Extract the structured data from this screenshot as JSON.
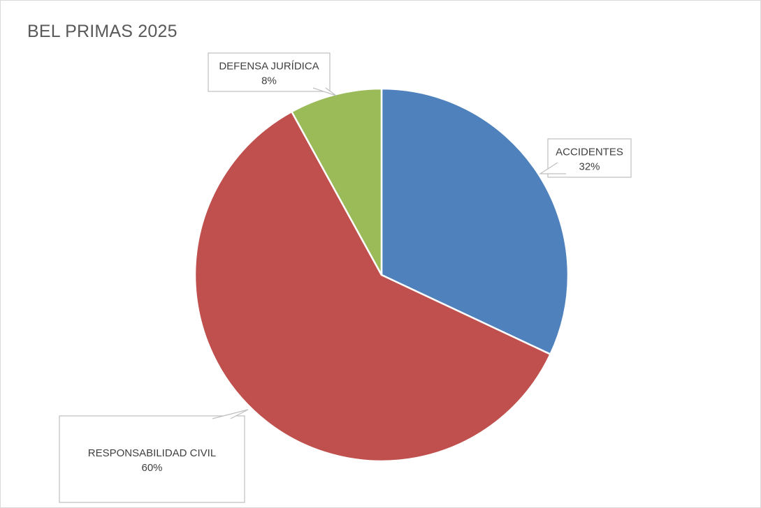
{
  "chart_data": {
    "type": "pie",
    "title": "BEL PRIMAS 2025",
    "slices": [
      {
        "label": "ACCIDENTES",
        "value": 32,
        "value_label": "32%",
        "color": "#4f81bd"
      },
      {
        "label": "RESPONSABILIDAD CIVIL",
        "value": 60,
        "value_label": "60%",
        "color": "#c0504d"
      },
      {
        "label": "DEFENSA JURÍDICA",
        "value": 8,
        "value_label": "8%",
        "color": "#9bbb59"
      }
    ],
    "start_angle": "12 o'clock",
    "direction": "clockwise",
    "legend": "none",
    "data_labels": "callouts"
  }
}
